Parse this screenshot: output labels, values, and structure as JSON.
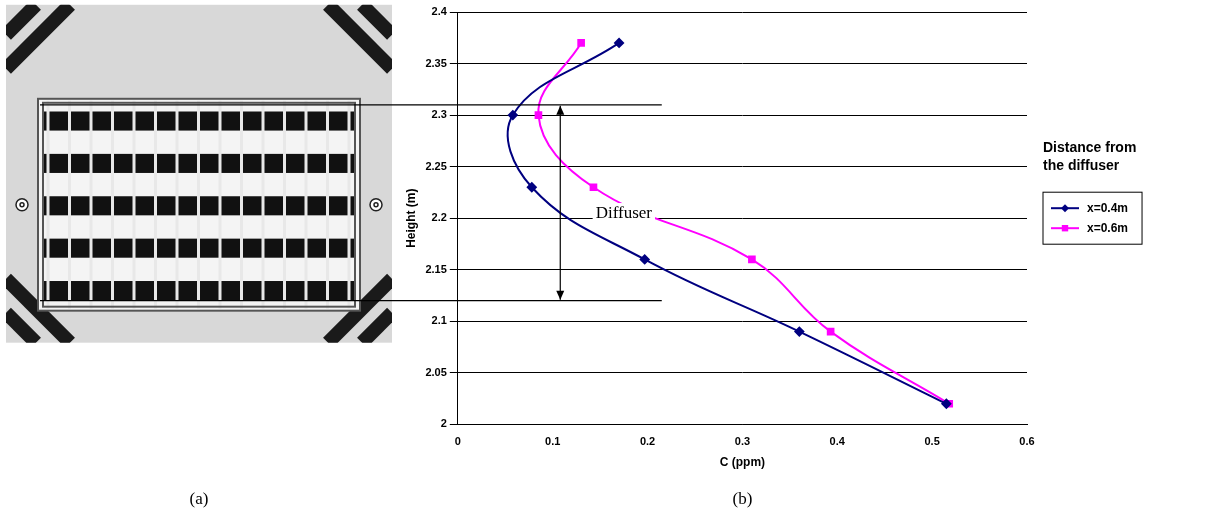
{
  "chart_data": {
    "type": "line",
    "x_label": "C (ppm)",
    "y_label": "Height (m)",
    "xlim": [
      0,
      0.6
    ],
    "xticks": [
      0,
      0.1,
      0.2,
      0.3,
      0.4,
      0.5,
      0.6
    ],
    "ylim": [
      2,
      2.4
    ],
    "yticks": [
      2,
      2.05,
      2.1,
      2.15,
      2.2,
      2.25,
      2.3,
      2.35,
      2.4
    ],
    "grid": "y",
    "legend": "right",
    "legend_title": "Distance from the diffuser",
    "series": [
      {
        "name": "x=0.4m",
        "color": "#000080",
        "marker": "diamond",
        "line_style": "solid",
        "x": [
          0.17,
          0.058,
          0.078,
          0.197,
          0.36,
          0.515
        ],
        "values": [
          2.37,
          2.3,
          2.23,
          2.16,
          2.09,
          2.02
        ]
      },
      {
        "name": "x=0.6m",
        "color": "#ff00ff",
        "marker": "square",
        "line_style": "solid",
        "x": [
          0.13,
          0.085,
          0.143,
          0.31,
          0.393,
          0.518
        ],
        "values": [
          2.37,
          2.3,
          2.23,
          2.16,
          2.09,
          2.02
        ]
      }
    ],
    "annotations": [
      {
        "text": "Diffuser",
        "x": 0.175,
        "y": 2.205,
        "arrow_x": 0.108,
        "span": [
          2.12,
          2.31
        ],
        "line_end_x": 0.215
      }
    ],
    "panel_labels": [
      "(a)",
      "(b)"
    ]
  }
}
